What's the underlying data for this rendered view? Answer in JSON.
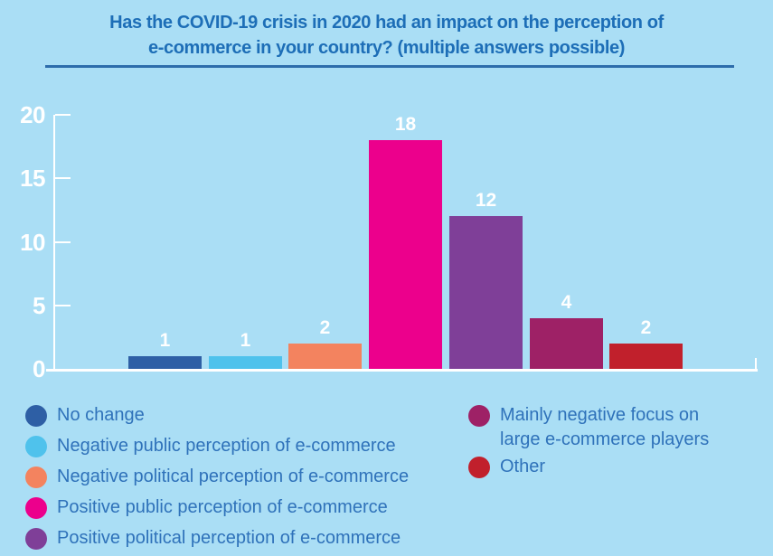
{
  "title": {
    "lines": [
      "Has the COVID-19 crisis in 2020 had an impact on the perception of",
      "e-commerce in your country? (multiple answers possible)"
    ]
  },
  "chart_data": {
    "type": "bar",
    "title": "Has the COVID-19 crisis in 2020 had an impact on the perception of e-commerce in your country? (multiple answers possible)",
    "categories": [
      "No change",
      "Negative public perception of e-commerce",
      "Negative political perception of e-commerce",
      "Positive public perception of e-commerce",
      "Positive political perception of e-commerce",
      "Mainly negative focus on large e-commerce players",
      "Other"
    ],
    "values": [
      1,
      1,
      2,
      18,
      12,
      4,
      2
    ],
    "bar_colors": [
      "#2e5fa5",
      "#4fc2ec",
      "#f3835f",
      "#ec008c",
      "#7f3f98",
      "#9e2166",
      "#c1202c"
    ],
    "xlabel": "",
    "ylabel": "",
    "ylim": [
      0,
      20
    ],
    "yticks": [
      0,
      5,
      10,
      15,
      20
    ],
    "grid": false,
    "show_value_labels": true,
    "x_tick_labels": "none",
    "legend_position": "below"
  },
  "legend": {
    "columns": [
      {
        "items": [
          {
            "label": "No change",
            "color": "#2e5fa5"
          },
          {
            "label": "Negative public perception of e-commerce",
            "color": "#4fc2ec"
          },
          {
            "label": "Negative political perception of e-commerce",
            "color": "#f3835f"
          },
          {
            "label": "Positive public perception of e-commerce",
            "color": "#ec008c"
          },
          {
            "label": "Positive political perception of e-commerce",
            "color": "#7f3f98"
          }
        ]
      },
      {
        "items": [
          {
            "label": "Mainly negative focus on large e-commerce players",
            "color": "#9e2166"
          },
          {
            "label": "Other",
            "color": "#c1202c"
          }
        ]
      }
    ]
  },
  "colors": {
    "background": "#aadef5",
    "title_text": "#1d6eb7",
    "divider": "#2d6cab",
    "legend_text": "#2f72ba",
    "axis": "#ffffff",
    "value_label_text": "#ffffff"
  }
}
